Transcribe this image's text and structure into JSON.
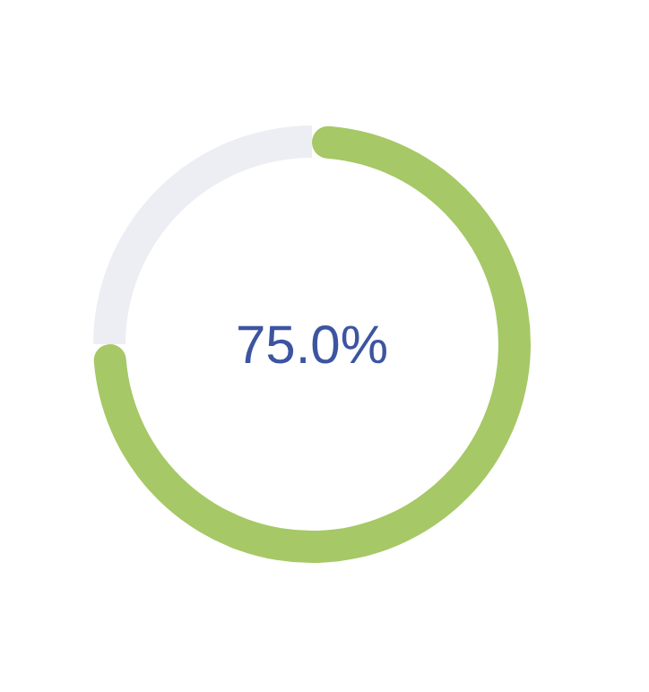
{
  "chart_data": {
    "type": "donut",
    "categories": [
      null,
      null
    ],
    "values": [
      75,
      25
    ],
    "colors": [
      "#a6c866",
      "#eceef3"
    ],
    "annotations": [
      "75.0%"
    ]
  }
}
